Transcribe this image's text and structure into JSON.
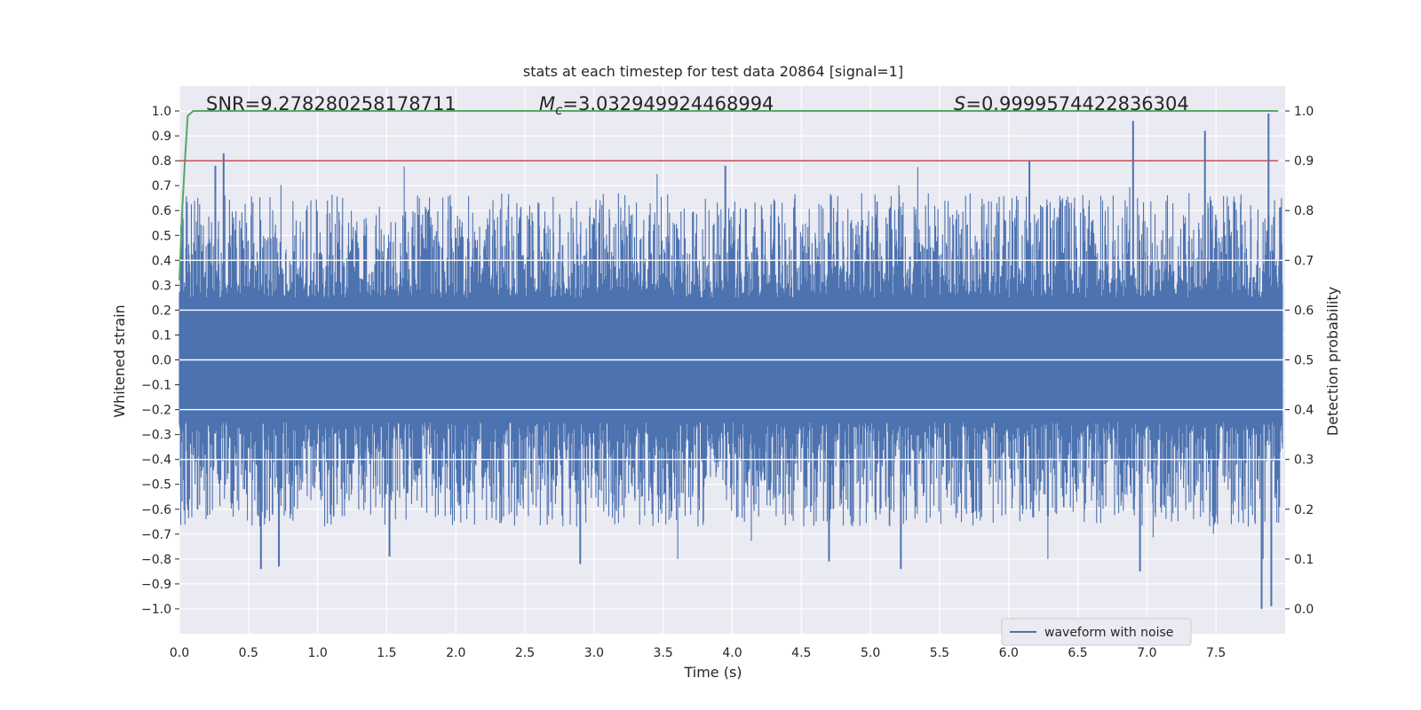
{
  "chart_data": {
    "type": "line",
    "title": "stats at each timestep for test data 20864 [signal=1]",
    "xlabel": "Time (s)",
    "ylabel": "Whitened strain",
    "y2label": "Detection probability",
    "xlim": [
      0.0,
      8.0
    ],
    "ylim": [
      -1.1,
      1.1
    ],
    "y2lim": [
      -0.05,
      1.05
    ],
    "x_ticks": [
      "0.0",
      "0.5",
      "1.0",
      "1.5",
      "2.0",
      "2.5",
      "3.0",
      "3.5",
      "4.0",
      "4.5",
      "5.0",
      "5.5",
      "6.0",
      "6.5",
      "7.0",
      "7.5"
    ],
    "y_ticks": [
      "1.0",
      "0.9",
      "0.8",
      "0.7",
      "0.6",
      "0.5",
      "0.4",
      "0.3",
      "0.2",
      "0.1",
      "0.0",
      "−0.1",
      "−0.2",
      "−0.3",
      "−0.4",
      "−0.5",
      "−0.6",
      "−0.7",
      "−0.8",
      "−0.9",
      "−1.0"
    ],
    "y2_ticks": [
      "1.0",
      "0.9",
      "0.8",
      "0.7",
      "0.6",
      "0.5",
      "0.4",
      "0.3",
      "0.2",
      "0.1",
      "0.0"
    ],
    "annotations": {
      "snr": "SNR=9.278280258178711",
      "mc_symbol": "M",
      "mc_sub": "c",
      "mc_value": "=3.032949924468994",
      "s_symbol": "S",
      "s_value": "=0.9999574422836304"
    },
    "legend": {
      "label": "waveform with noise",
      "position": "lower-right"
    },
    "grid": true,
    "colors": {
      "background": "#eaeaf2",
      "grid": "#ffffff",
      "waveform": "#4c72b0",
      "probability": "#55a868",
      "threshold": "#c44e52"
    },
    "series": [
      {
        "name": "waveform with noise",
        "axis": "left",
        "t_start": 0.0,
        "t_end": 7.98,
        "envelope": {
          "body_amplitude": 0.25,
          "typical_peak": 0.55,
          "max_spike": 0.99,
          "min_spike": -1.0
        },
        "notable_spikes": [
          {
            "t": 0.32,
            "v": 0.83
          },
          {
            "t": 0.26,
            "v": 0.78
          },
          {
            "t": 0.59,
            "v": -0.84
          },
          {
            "t": 0.72,
            "v": -0.83
          },
          {
            "t": 1.52,
            "v": -0.79
          },
          {
            "t": 2.9,
            "v": -0.82
          },
          {
            "t": 3.95,
            "v": 0.78
          },
          {
            "t": 4.58,
            "v": -0.15
          },
          {
            "t": 4.7,
            "v": -0.81
          },
          {
            "t": 5.22,
            "v": -0.84
          },
          {
            "t": 6.15,
            "v": 0.8
          },
          {
            "t": 6.95,
            "v": -0.85
          },
          {
            "t": 6.9,
            "v": 0.96
          },
          {
            "t": 7.42,
            "v": 0.92
          },
          {
            "t": 7.83,
            "v": -1.0
          },
          {
            "t": 7.88,
            "v": 0.99
          },
          {
            "t": 7.9,
            "v": -0.99
          }
        ]
      },
      {
        "name": "detection probability",
        "axis": "right",
        "x": [
          0.0,
          0.02,
          0.04,
          0.06,
          0.1,
          0.2,
          7.95
        ],
        "values": [
          0.66,
          0.8,
          0.9,
          0.99,
          1.0,
          1.0,
          1.0
        ]
      },
      {
        "name": "threshold",
        "axis": "right",
        "x": [
          0.0,
          7.95
        ],
        "values": [
          0.9,
          0.9
        ]
      }
    ]
  }
}
